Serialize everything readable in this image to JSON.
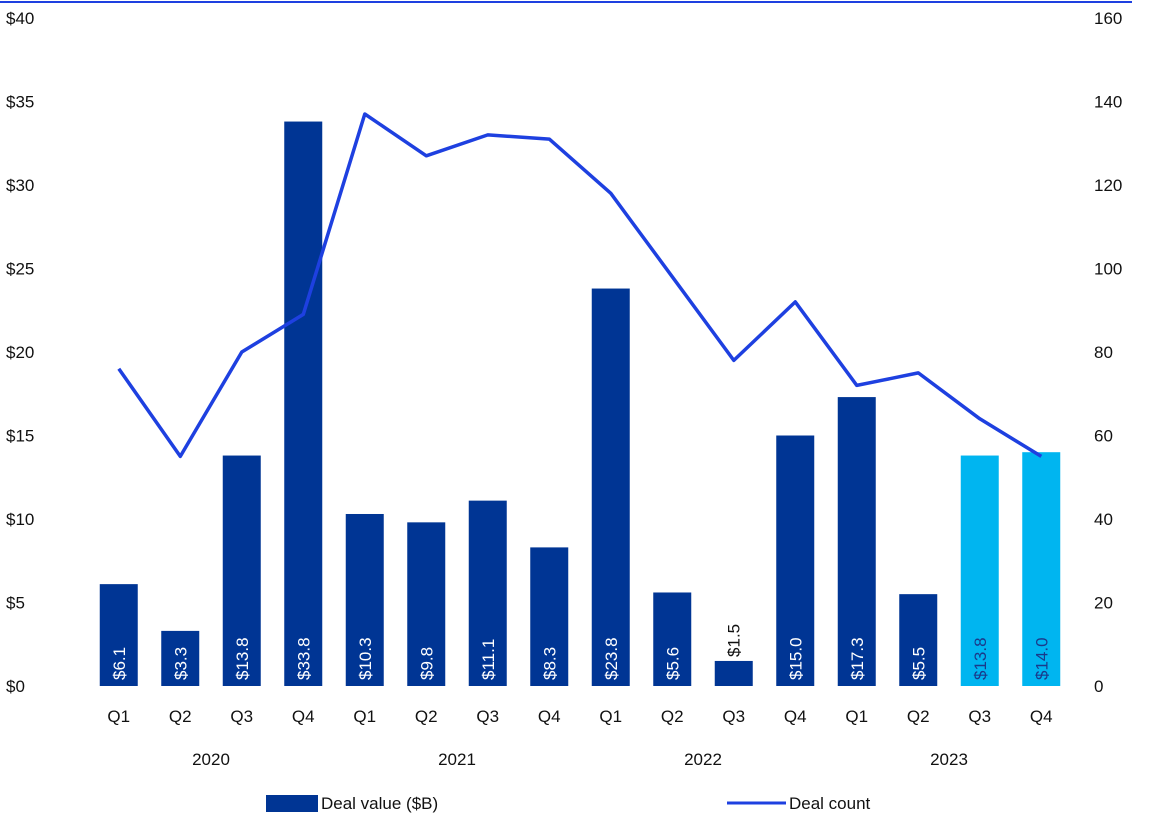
{
  "chart_data": {
    "type": "bar",
    "categories": [
      "Q1",
      "Q2",
      "Q3",
      "Q4",
      "Q1",
      "Q2",
      "Q3",
      "Q4",
      "Q1",
      "Q2",
      "Q3",
      "Q4",
      "Q1",
      "Q2",
      "Q3",
      "Q4"
    ],
    "groups": [
      {
        "label": "2020",
        "count": 4
      },
      {
        "label": "2021",
        "count": 4
      },
      {
        "label": "2022",
        "count": 4
      },
      {
        "label": "2023",
        "count": 4
      }
    ],
    "series": [
      {
        "name": "Deal value ($B)",
        "type": "bar",
        "axis": "left",
        "values": [
          6.1,
          3.3,
          13.8,
          33.8,
          10.3,
          9.8,
          11.1,
          8.3,
          23.8,
          5.6,
          1.5,
          15.0,
          17.3,
          5.5,
          13.8,
          14.0
        ],
        "labels": [
          "$6.1",
          "$3.3",
          "$13.8",
          "$33.8",
          "$10.3",
          "$9.8",
          "$11.1",
          "$8.3",
          "$23.8",
          "$5.6",
          "$1.5",
          "$15.0",
          "$17.3",
          "$5.5",
          "$13.8",
          "$14.0"
        ],
        "color": "#003594",
        "highlight_color": "#00B5F0",
        "highlight_indices": [
          14,
          15
        ]
      },
      {
        "name": "Deal count",
        "type": "line",
        "axis": "right",
        "values": [
          76,
          55,
          80,
          89,
          137,
          127,
          132,
          131,
          118,
          98,
          78,
          92,
          72,
          75,
          64,
          55
        ],
        "color": "#1E40E0"
      }
    ],
    "y_left": {
      "ylim": [
        0,
        40
      ],
      "ticks": [
        0,
        5,
        10,
        15,
        20,
        25,
        30,
        35,
        40
      ],
      "tick_labels": [
        "$0",
        "$5",
        "$10",
        "$15",
        "$20",
        "$25",
        "$30",
        "$35",
        "$40"
      ]
    },
    "y_right": {
      "ylim": [
        0,
        160
      ],
      "ticks": [
        0,
        20,
        40,
        60,
        80,
        100,
        120,
        140,
        160
      ],
      "tick_labels": [
        "0",
        "20",
        "40",
        "60",
        "80",
        "100",
        "120",
        "140",
        "160"
      ]
    },
    "title": "",
    "xlabel": "",
    "ylabel": "",
    "grid": false,
    "legend": {
      "position": "bottom",
      "items": [
        "Deal value ($B)",
        "Deal count"
      ]
    },
    "colors": {
      "bar": "#003594",
      "bar_highlight": "#00B5F0",
      "line": "#1E40E0",
      "top_rule": "#1E40E0",
      "label_on_dark": "#ffffff",
      "label_on_light": "#1a3a8a",
      "label_outside": "#111111"
    }
  }
}
